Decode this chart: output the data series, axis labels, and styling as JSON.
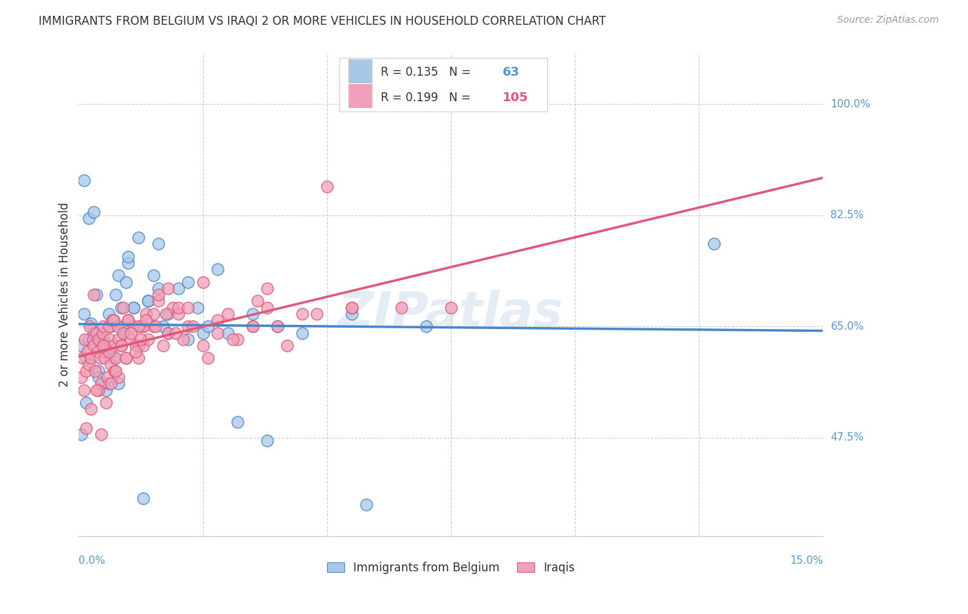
{
  "title": "IMMIGRANTS FROM BELGIUM VS IRAQI 2 OR MORE VEHICLES IN HOUSEHOLD CORRELATION CHART",
  "source": "Source: ZipAtlas.com",
  "ylabel": "2 or more Vehicles in Household",
  "xlim": [
    0.0,
    15.0
  ],
  "ylim": [
    32.0,
    108.0
  ],
  "ytick_labels": [
    "47.5%",
    "65.0%",
    "82.5%",
    "100.0%"
  ],
  "ytick_vals": [
    47.5,
    65.0,
    82.5,
    100.0
  ],
  "xtick_labels": [
    "0.0%",
    "15.0%"
  ],
  "legend_r1": "R = 0.135",
  "legend_n1": "N =   63",
  "legend_r2": "R = 0.199",
  "legend_n2": "N = 105",
  "color_belgium": "#a8c8e8",
  "color_iraq": "#f0a0b8",
  "color_belgium_line": "#4488cc",
  "color_iraq_line": "#e05878",
  "color_axis_text": "#5599cc",
  "color_text": "#333333",
  "color_source": "#999999",
  "color_grid": "#cccccc",
  "watermark": "ZIPatlas",
  "bottom_legend_belgium": "Immigrants from Belgium",
  "bottom_legend_iraq": "Iraqis",
  "belgium_x": [
    0.05,
    0.1,
    0.15,
    0.2,
    0.25,
    0.3,
    0.35,
    0.4,
    0.45,
    0.5,
    0.55,
    0.6,
    0.65,
    0.7,
    0.75,
    0.8,
    0.85,
    0.9,
    0.95,
    1.0,
    1.1,
    1.2,
    1.3,
    1.4,
    1.5,
    1.6,
    1.7,
    1.8,
    2.0,
    2.2,
    2.5,
    2.8,
    3.0,
    3.5,
    4.0,
    4.5,
    5.5,
    7.0,
    12.8,
    0.1,
    0.2,
    0.3,
    0.4,
    0.5,
    0.6,
    0.7,
    0.8,
    0.9,
    1.0,
    1.1,
    1.2,
    1.4,
    1.6,
    1.8,
    2.2,
    2.6,
    3.2,
    3.8,
    5.8,
    2.4,
    0.05,
    0.15,
    1.3
  ],
  "belgium_y": [
    62.0,
    67.0,
    60.0,
    63.0,
    65.5,
    64.0,
    70.0,
    58.0,
    62.0,
    63.0,
    55.0,
    67.0,
    65.0,
    60.0,
    70.0,
    73.0,
    68.0,
    65.0,
    72.0,
    75.0,
    68.0,
    79.0,
    65.0,
    69.0,
    73.0,
    78.0,
    65.0,
    67.0,
    71.0,
    72.0,
    64.0,
    74.0,
    64.0,
    67.0,
    65.0,
    64.0,
    67.0,
    65.0,
    78.0,
    88.0,
    82.0,
    83.0,
    57.0,
    61.0,
    56.0,
    66.0,
    56.0,
    64.0,
    76.0,
    68.0,
    62.0,
    69.0,
    71.0,
    64.0,
    63.0,
    65.0,
    50.0,
    47.0,
    37.0,
    68.0,
    48.0,
    53.0,
    38.0
  ],
  "iraq_x": [
    0.05,
    0.08,
    0.1,
    0.12,
    0.15,
    0.18,
    0.2,
    0.22,
    0.25,
    0.28,
    0.3,
    0.33,
    0.35,
    0.38,
    0.4,
    0.42,
    0.45,
    0.48,
    0.5,
    0.52,
    0.55,
    0.58,
    0.6,
    0.62,
    0.65,
    0.68,
    0.7,
    0.72,
    0.75,
    0.78,
    0.8,
    0.85,
    0.9,
    0.95,
    1.0,
    1.05,
    1.1,
    1.15,
    1.2,
    1.25,
    1.3,
    1.35,
    1.4,
    1.5,
    1.6,
    1.7,
    1.8,
    1.9,
    2.0,
    2.1,
    2.2,
    2.5,
    2.8,
    3.0,
    3.2,
    3.5,
    3.8,
    4.0,
    4.2,
    4.5,
    0.4,
    0.6,
    0.8,
    1.0,
    1.3,
    1.6,
    2.0,
    2.5,
    3.5,
    4.8,
    0.3,
    0.5,
    0.7,
    0.9,
    1.2,
    1.5,
    1.8,
    2.2,
    2.8,
    3.6,
    5.0,
    5.5,
    6.5,
    7.5,
    0.15,
    0.25,
    0.35,
    0.45,
    0.55,
    0.65,
    0.75,
    0.85,
    0.95,
    1.05,
    1.15,
    1.25,
    1.35,
    1.55,
    1.75,
    1.95,
    2.3,
    2.6,
    3.1,
    3.8,
    5.5
  ],
  "iraq_y": [
    57.0,
    60.0,
    55.0,
    63.0,
    58.0,
    61.0,
    59.0,
    65.0,
    60.0,
    63.0,
    62.0,
    58.0,
    64.0,
    61.0,
    63.0,
    60.0,
    56.0,
    64.0,
    65.0,
    60.0,
    62.0,
    57.0,
    65.0,
    63.0,
    59.0,
    66.0,
    62.0,
    58.0,
    60.0,
    65.0,
    63.0,
    62.0,
    64.0,
    60.0,
    66.0,
    63.0,
    65.0,
    62.0,
    60.0,
    65.0,
    62.0,
    67.0,
    63.0,
    65.0,
    69.0,
    62.0,
    64.0,
    68.0,
    67.0,
    63.0,
    65.0,
    62.0,
    64.0,
    67.0,
    63.0,
    65.0,
    68.0,
    65.0,
    62.0,
    67.0,
    55.0,
    61.0,
    57.0,
    66.0,
    65.0,
    70.0,
    68.0,
    72.0,
    65.0,
    67.0,
    70.0,
    62.0,
    66.0,
    68.0,
    65.0,
    67.0,
    71.0,
    68.0,
    66.0,
    69.0,
    87.0,
    68.0,
    68.0,
    68.0,
    49.0,
    52.0,
    55.0,
    48.0,
    53.0,
    56.0,
    58.0,
    62.0,
    60.0,
    64.0,
    61.0,
    63.0,
    66.0,
    65.0,
    67.0,
    64.0,
    65.0,
    60.0,
    63.0,
    71.0,
    68.0
  ]
}
